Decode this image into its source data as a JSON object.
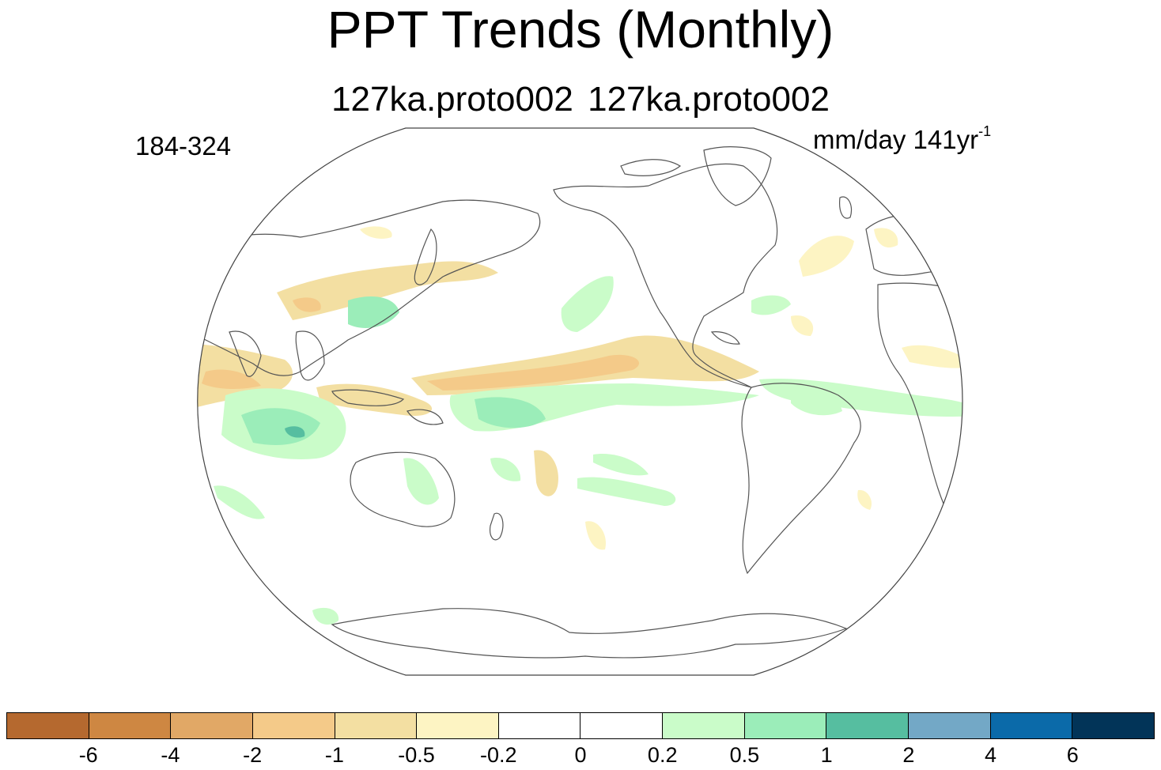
{
  "title": "PPT Trends (Monthly)",
  "subtitle": "127ka.proto002  127ka.proto002",
  "years_label": "184-324",
  "units": {
    "base": "mm/day 141yr",
    "exponent": "-1"
  },
  "colorbar": {
    "colors": [
      "#b5692f",
      "#ce8742",
      "#e1a866",
      "#f4ca89",
      "#f3dfa2",
      "#fdf4c3",
      "#ffffff",
      "#ffffff",
      "#cafcc9",
      "#9bedb9",
      "#56bea0",
      "#73a8c6",
      "#0b6aa9",
      "#023458"
    ],
    "tick_labels": [
      "-6",
      "-4",
      "-2",
      "-1",
      "-0.5",
      "-0.2",
      "0",
      "0.2",
      "0.5",
      "1",
      "2",
      "4",
      "6"
    ]
  }
}
